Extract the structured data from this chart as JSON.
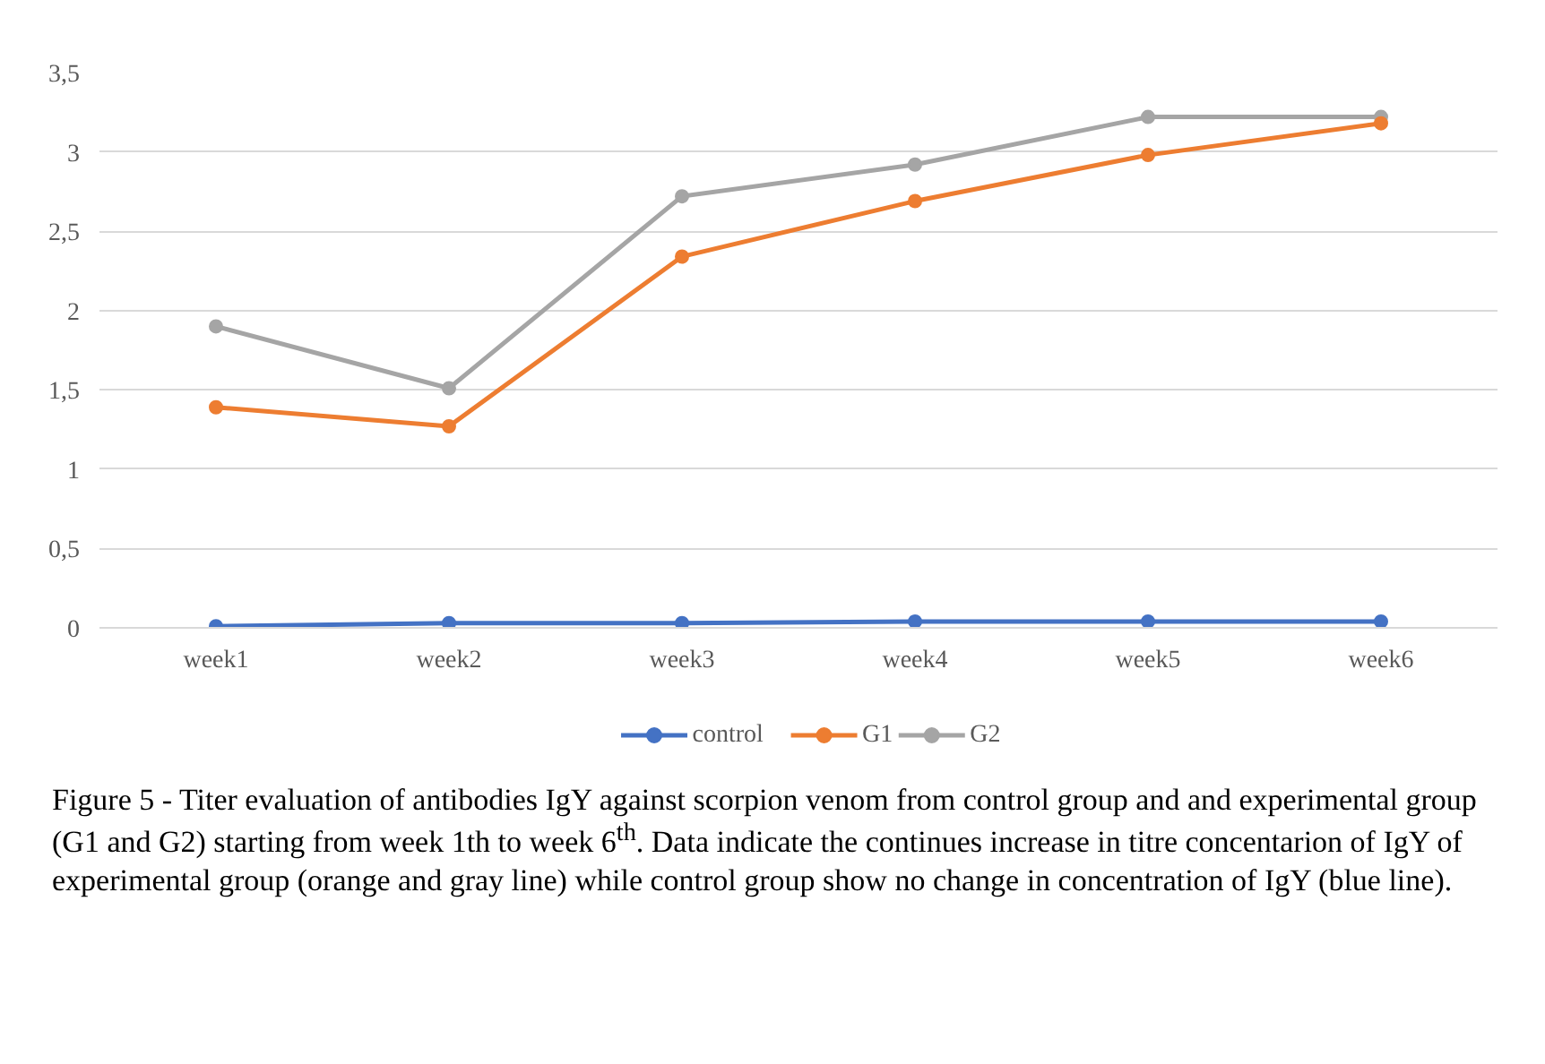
{
  "chart_data": {
    "type": "line",
    "categories": [
      "week1",
      "week2",
      "week3",
      "week4",
      "week5",
      "week6"
    ],
    "series": [
      {
        "name": "control",
        "color": "#4472c4",
        "values": [
          0.01,
          0.03,
          0.03,
          0.04,
          0.04,
          0.04
        ]
      },
      {
        "name": "G1",
        "color": "#ed7d31",
        "values": [
          1.39,
          1.27,
          2.34,
          2.69,
          2.98,
          3.18
        ]
      },
      {
        "name": "G2",
        "color": "#a5a5a5",
        "values": [
          1.9,
          1.51,
          2.72,
          2.92,
          3.22,
          3.22
        ]
      }
    ],
    "ylim": [
      0,
      3.5
    ],
    "yticks": [
      0,
      {
        "value": 0.5,
        "label": "0,5"
      },
      1,
      {
        "value": 1.5,
        "label": "1,5"
      },
      2,
      {
        "value": 2.5,
        "label": "2,5"
      },
      3,
      {
        "value": 3.5,
        "label": "3,5"
      }
    ],
    "grid": "y",
    "legend": "bottom",
    "marker": "circle",
    "line_style": "solid",
    "annotations": [
      "Figure 5 - Titer evaluation of  antibodies IgY against scorpion venom from control group and and experimental group (G1 and G2) starting from week 1th to week 6$^{th}$. Data indicate the continues increase in titre concentarion of IgY of experimental group (orange and gray line) while control group show no change in concentration of IgY (blue line)."
    ]
  }
}
